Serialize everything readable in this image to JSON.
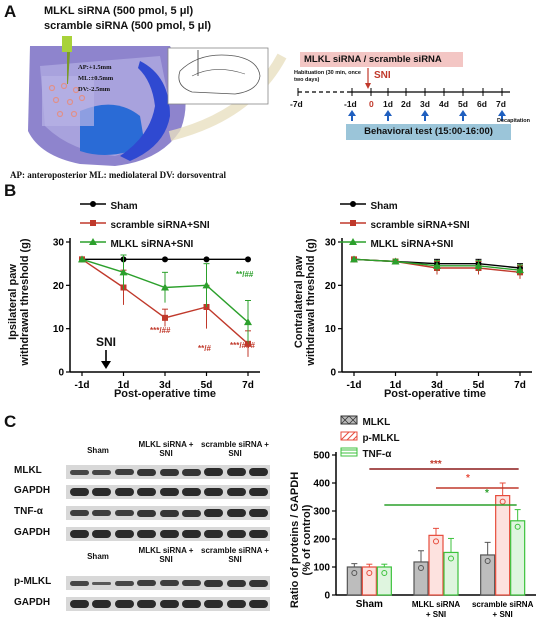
{
  "panel_a": {
    "letter": "A",
    "line1": "MLKL siRNA (500 pmol, 5 μl)",
    "line2": "scramble siRNA (500 pmol, 5 μl)",
    "coords": [
      "AP:+1.5mm",
      "ML:±0.5mm",
      "DV:-2.5mm"
    ],
    "caption": "AP: anteroposterior  ML: mediolateral  DV: dorsoventral",
    "timeline": {
      "banner": "MLKL siRNA / scramble siRNA",
      "habituation": "Habituation (30 min, once two days)",
      "sni": "SNI",
      "days": [
        "-7d",
        "-1d",
        "0",
        "1d",
        "2d",
        "3d",
        "4d",
        "5d",
        "6d",
        "7d"
      ],
      "decapitation": "Decapitation",
      "behavioral": "Behavioral test (15:00-16:00)"
    }
  },
  "panel_b": {
    "letter": "B",
    "legend": [
      "Sham",
      "scramble siRNA+SNI",
      "MLKL siRNA+SNI"
    ],
    "arrow_label": "SNI",
    "left": {
      "ylabel": "Ipsilateral paw withdrawal threshold (g)",
      "xlabel": "Post-operative time",
      "annotations": [
        "**/##",
        "***/##",
        "**/#",
        "***/###"
      ]
    },
    "right": {
      "ylabel": "Contralateral paw withdrawal threshold (g)",
      "xlabel": "Post-operative time"
    },
    "chart_data": [
      {
        "type": "line",
        "categories": [
          "-1d",
          "1d",
          "3d",
          "5d",
          "7d"
        ],
        "ylim": [
          0,
          30
        ],
        "yticks": [
          0,
          10,
          20,
          30
        ],
        "series": [
          {
            "name": "Sham",
            "values": [
              26,
              26,
              26,
              26,
              26
            ],
            "err": [
              0,
              0,
              0,
              0,
              0
            ],
            "color": "#000000"
          },
          {
            "name": "scramble siRNA+SNI",
            "values": [
              26,
              19.5,
              12.5,
              15,
              6.5
            ],
            "err": [
              0,
              4,
              2,
              5,
              3
            ],
            "color": "#c0392b"
          },
          {
            "name": "MLKL siRNA+SNI",
            "values": [
              26,
              23,
              19.5,
              20,
              11.5
            ],
            "err": [
              0,
              4,
              3.5,
              5,
              5
            ],
            "color": "#2ca02c"
          }
        ]
      },
      {
        "type": "line",
        "categories": [
          "-1d",
          "1d",
          "3d",
          "5d",
          "7d"
        ],
        "ylim": [
          0,
          30
        ],
        "yticks": [
          0,
          10,
          20,
          30
        ],
        "series": [
          {
            "name": "Sham",
            "values": [
              26,
              25.5,
              25,
              25,
              24
            ],
            "err": [
              0,
              0.5,
              1,
              1,
              1
            ],
            "color": "#000000"
          },
          {
            "name": "scramble siRNA+SNI",
            "values": [
              26,
              25.5,
              24,
              24,
              23
            ],
            "err": [
              0,
              0.5,
              1.5,
              1.5,
              1.5
            ],
            "color": "#c0392b"
          },
          {
            "name": "MLKL siRNA+SNI",
            "values": [
              26,
              25.5,
              24.5,
              24.5,
              23.5
            ],
            "err": [
              0,
              0.5,
              1.2,
              1.2,
              1.2
            ],
            "color": "#2ca02c"
          }
        ]
      }
    ]
  },
  "panel_c": {
    "letter": "C",
    "groups_top": [
      "Sham",
      "MLKL siRNA + SNI",
      "scramble siRNA + SNI"
    ],
    "rows": [
      "MLKL",
      "GAPDH",
      "TNF-α",
      "GAPDH",
      "p-MLKL",
      "GAPDH"
    ],
    "bar": {
      "legend": [
        "MLKL",
        "p-MLKL",
        "TNF-α"
      ],
      "ylabel": "Ratio of proteins / GAPDH (% of control)",
      "sig": [
        "***",
        "*",
        "*"
      ],
      "chart_data": {
        "type": "bar",
        "categories": [
          "Sham",
          "MLKL siRNA + SNI",
          "scramble siRNA + SNI"
        ],
        "ylim": [
          0,
          500
        ],
        "yticks": [
          0,
          100,
          200,
          300,
          400,
          500
        ],
        "series": [
          {
            "name": "MLKL",
            "values": [
              100,
              118,
              143
            ],
            "err": [
              12,
              40,
              45
            ],
            "color": "#555555"
          },
          {
            "name": "p-MLKL",
            "values": [
              100,
              213,
              355
            ],
            "err": [
              10,
              25,
              45
            ],
            "color": "#e74c3c"
          },
          {
            "name": "TNF-α",
            "values": [
              100,
              152,
              265
            ],
            "err": [
              10,
              50,
              40
            ],
            "color": "#3cc23c"
          }
        ]
      }
    }
  }
}
